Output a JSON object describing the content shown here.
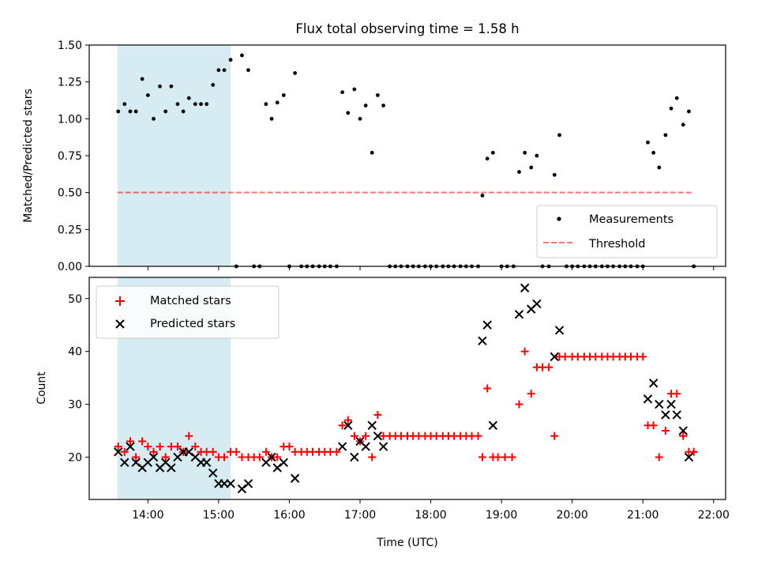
{
  "chart_data": [
    {
      "type": "scatter",
      "title": "Flux total observing time = 1.58 h",
      "ylabel": "Matched/Predicted stars",
      "ylim": [
        0,
        1.5
      ],
      "yticks": [
        0.0,
        0.25,
        0.5,
        0.75,
        1.0,
        1.25,
        1.5
      ],
      "ytick_labels": [
        "0.00",
        "0.25",
        "0.50",
        "0.75",
        "1.00",
        "1.25",
        "1.50"
      ],
      "highlight_span": {
        "start_h": 13.57,
        "end_h": 15.17,
        "color": "#add8e6"
      },
      "threshold": {
        "value": 0.5,
        "start_h": 13.57,
        "end_h": 21.72,
        "color": "#ff0000"
      },
      "legend": {
        "position": "lower right",
        "entries": [
          {
            "label": "Measurements",
            "marker": "dot"
          },
          {
            "label": "Threshold",
            "marker": "dashed-line"
          }
        ]
      },
      "series": [
        {
          "name": "Measurements",
          "color": "#000000",
          "points": [
            [
              13.58,
              1.05
            ],
            [
              13.67,
              1.1
            ],
            [
              13.75,
              1.05
            ],
            [
              13.83,
              1.05
            ],
            [
              13.92,
              1.27
            ],
            [
              14.0,
              1.16
            ],
            [
              14.08,
              1.0
            ],
            [
              14.17,
              1.22
            ],
            [
              14.25,
              1.05
            ],
            [
              14.33,
              1.22
            ],
            [
              14.42,
              1.1
            ],
            [
              14.5,
              1.05
            ],
            [
              14.58,
              1.14
            ],
            [
              14.67,
              1.1
            ],
            [
              14.75,
              1.1
            ],
            [
              14.83,
              1.1
            ],
            [
              14.92,
              1.23
            ],
            [
              15.0,
              1.33
            ],
            [
              15.08,
              1.33
            ],
            [
              15.17,
              1.4
            ],
            [
              15.25,
              0.0
            ],
            [
              15.33,
              1.43
            ],
            [
              15.42,
              1.33
            ],
            [
              15.5,
              0.0
            ],
            [
              15.58,
              0.0
            ],
            [
              15.67,
              1.1
            ],
            [
              15.75,
              1.0
            ],
            [
              15.83,
              1.11
            ],
            [
              15.92,
              1.16
            ],
            [
              16.0,
              0.0
            ],
            [
              16.08,
              1.31
            ],
            [
              16.17,
              0.0
            ],
            [
              16.25,
              0.0
            ],
            [
              16.33,
              0.0
            ],
            [
              16.42,
              0.0
            ],
            [
              16.5,
              0.0
            ],
            [
              16.58,
              0.0
            ],
            [
              16.67,
              0.0
            ],
            [
              16.75,
              1.18
            ],
            [
              16.83,
              1.04
            ],
            [
              16.92,
              1.2
            ],
            [
              17.0,
              1.0
            ],
            [
              17.08,
              1.09
            ],
            [
              17.17,
              0.77
            ],
            [
              17.25,
              1.16
            ],
            [
              17.33,
              1.09
            ],
            [
              17.42,
              0.0
            ],
            [
              17.5,
              0.0
            ],
            [
              17.58,
              0.0
            ],
            [
              17.67,
              0.0
            ],
            [
              17.75,
              0.0
            ],
            [
              17.83,
              0.0
            ],
            [
              17.92,
              0.0
            ],
            [
              18.0,
              0.0
            ],
            [
              18.08,
              0.0
            ],
            [
              18.17,
              0.0
            ],
            [
              18.25,
              0.0
            ],
            [
              18.33,
              0.0
            ],
            [
              18.42,
              0.0
            ],
            [
              18.5,
              0.0
            ],
            [
              18.58,
              0.0
            ],
            [
              18.67,
              0.0
            ],
            [
              18.73,
              0.48
            ],
            [
              18.8,
              0.73
            ],
            [
              18.88,
              0.77
            ],
            [
              19.0,
              0.0
            ],
            [
              19.08,
              0.0
            ],
            [
              19.17,
              0.0
            ],
            [
              19.25,
              0.64
            ],
            [
              19.33,
              0.77
            ],
            [
              19.42,
              0.67
            ],
            [
              19.5,
              0.75
            ],
            [
              19.58,
              0.0
            ],
            [
              19.67,
              0.0
            ],
            [
              19.75,
              0.62
            ],
            [
              19.82,
              0.89
            ],
            [
              19.92,
              0.0
            ],
            [
              20.0,
              0.0
            ],
            [
              20.08,
              0.0
            ],
            [
              20.17,
              0.0
            ],
            [
              20.25,
              0.0
            ],
            [
              20.33,
              0.0
            ],
            [
              20.42,
              0.0
            ],
            [
              20.5,
              0.0
            ],
            [
              20.58,
              0.0
            ],
            [
              20.67,
              0.0
            ],
            [
              20.75,
              0.0
            ],
            [
              20.83,
              0.0
            ],
            [
              20.92,
              0.0
            ],
            [
              21.0,
              0.0
            ],
            [
              21.07,
              0.84
            ],
            [
              21.15,
              0.77
            ],
            [
              21.23,
              0.67
            ],
            [
              21.32,
              0.89
            ],
            [
              21.4,
              1.07
            ],
            [
              21.48,
              1.14
            ],
            [
              21.57,
              0.96
            ],
            [
              21.65,
              1.05
            ],
            [
              21.72,
              0.0
            ]
          ]
        }
      ]
    },
    {
      "type": "scatter",
      "xlabel": "Time (UTC)",
      "ylabel": "Count",
      "ylim": [
        12,
        54
      ],
      "yticks": [
        20,
        30,
        40,
        50
      ],
      "xlim_h": [
        13.17,
        22.17
      ],
      "xticks": [
        "14:00",
        "15:00",
        "16:00",
        "17:00",
        "18:00",
        "19:00",
        "20:00",
        "21:00",
        "22:00"
      ],
      "highlight_span": {
        "start_h": 13.57,
        "end_h": 15.17,
        "color": "#add8e6"
      },
      "legend": {
        "position": "upper left",
        "entries": [
          {
            "label": "Matched stars",
            "marker": "plus",
            "color": "#ff0000"
          },
          {
            "label": "Predicted stars",
            "marker": "x",
            "color": "#000000"
          }
        ]
      },
      "series": [
        {
          "name": "Matched stars",
          "color": "#ff0000",
          "points": [
            [
              13.58,
              22
            ],
            [
              13.67,
              21
            ],
            [
              13.75,
              23
            ],
            [
              13.83,
              20
            ],
            [
              13.92,
              23
            ],
            [
              14.0,
              22
            ],
            [
              14.08,
              21
            ],
            [
              14.17,
              22
            ],
            [
              14.25,
              20
            ],
            [
              14.33,
              22
            ],
            [
              14.42,
              22
            ],
            [
              14.5,
              21
            ],
            [
              14.58,
              24
            ],
            [
              14.67,
              22
            ],
            [
              14.75,
              21
            ],
            [
              14.83,
              21
            ],
            [
              14.92,
              21
            ],
            [
              15.0,
              20
            ],
            [
              15.08,
              20
            ],
            [
              15.17,
              21
            ],
            [
              15.25,
              21
            ],
            [
              15.33,
              20
            ],
            [
              15.42,
              20
            ],
            [
              15.5,
              20
            ],
            [
              15.58,
              20
            ],
            [
              15.67,
              21
            ],
            [
              15.75,
              20
            ],
            [
              15.83,
              20
            ],
            [
              15.92,
              22
            ],
            [
              16.0,
              22
            ],
            [
              16.08,
              21
            ],
            [
              16.17,
              21
            ],
            [
              16.25,
              21
            ],
            [
              16.33,
              21
            ],
            [
              16.42,
              21
            ],
            [
              16.5,
              21
            ],
            [
              16.58,
              21
            ],
            [
              16.67,
              21
            ],
            [
              16.75,
              26
            ],
            [
              16.83,
              27
            ],
            [
              16.92,
              24
            ],
            [
              17.0,
              23
            ],
            [
              17.08,
              24
            ],
            [
              17.17,
              20
            ],
            [
              17.25,
              28
            ],
            [
              17.33,
              24
            ],
            [
              17.42,
              24
            ],
            [
              17.5,
              24
            ],
            [
              17.58,
              24
            ],
            [
              17.67,
              24
            ],
            [
              17.75,
              24
            ],
            [
              17.83,
              24
            ],
            [
              17.92,
              24
            ],
            [
              18.0,
              24
            ],
            [
              18.08,
              24
            ],
            [
              18.17,
              24
            ],
            [
              18.25,
              24
            ],
            [
              18.33,
              24
            ],
            [
              18.42,
              24
            ],
            [
              18.5,
              24
            ],
            [
              18.58,
              24
            ],
            [
              18.67,
              24
            ],
            [
              18.73,
              20
            ],
            [
              18.8,
              33
            ],
            [
              18.88,
              20
            ],
            [
              18.95,
              20
            ],
            [
              19.05,
              20
            ],
            [
              19.15,
              20
            ],
            [
              19.25,
              30
            ],
            [
              19.33,
              40
            ],
            [
              19.42,
              32
            ],
            [
              19.5,
              37
            ],
            [
              19.58,
              37
            ],
            [
              19.67,
              37
            ],
            [
              19.75,
              24
            ],
            [
              19.82,
              39
            ],
            [
              19.9,
              39
            ],
            [
              20.0,
              39
            ],
            [
              20.08,
              39
            ],
            [
              20.17,
              39
            ],
            [
              20.25,
              39
            ],
            [
              20.33,
              39
            ],
            [
              20.42,
              39
            ],
            [
              20.5,
              39
            ],
            [
              20.58,
              39
            ],
            [
              20.67,
              39
            ],
            [
              20.75,
              39
            ],
            [
              20.83,
              39
            ],
            [
              20.92,
              39
            ],
            [
              21.0,
              39
            ],
            [
              21.07,
              26
            ],
            [
              21.15,
              26
            ],
            [
              21.23,
              20
            ],
            [
              21.32,
              25
            ],
            [
              21.4,
              32
            ],
            [
              21.48,
              32
            ],
            [
              21.57,
              24
            ],
            [
              21.65,
              21
            ],
            [
              21.72,
              21
            ]
          ]
        },
        {
          "name": "Predicted stars",
          "color": "#000000",
          "points": [
            [
              13.58,
              21
            ],
            [
              13.67,
              19
            ],
            [
              13.75,
              22
            ],
            [
              13.83,
              19
            ],
            [
              13.92,
              18
            ],
            [
              14.0,
              19
            ],
            [
              14.08,
              20
            ],
            [
              14.17,
              18
            ],
            [
              14.25,
              19
            ],
            [
              14.33,
              18
            ],
            [
              14.42,
              20
            ],
            [
              14.5,
              21
            ],
            [
              14.58,
              21
            ],
            [
              14.67,
              20
            ],
            [
              14.75,
              19
            ],
            [
              14.83,
              19
            ],
            [
              14.92,
              17
            ],
            [
              15.0,
              15
            ],
            [
              15.08,
              15
            ],
            [
              15.17,
              15
            ],
            [
              15.33,
              14
            ],
            [
              15.42,
              15
            ],
            [
              15.67,
              19
            ],
            [
              15.75,
              20
            ],
            [
              15.83,
              18
            ],
            [
              15.92,
              19
            ],
            [
              16.08,
              16
            ],
            [
              16.75,
              22
            ],
            [
              16.83,
              26
            ],
            [
              16.92,
              20
            ],
            [
              17.0,
              23
            ],
            [
              17.08,
              22
            ],
            [
              17.17,
              26
            ],
            [
              17.25,
              24
            ],
            [
              17.33,
              22
            ],
            [
              18.73,
              42
            ],
            [
              18.8,
              45
            ],
            [
              18.88,
              26
            ],
            [
              19.25,
              47
            ],
            [
              19.33,
              52
            ],
            [
              19.42,
              48
            ],
            [
              19.5,
              49
            ],
            [
              19.75,
              39
            ],
            [
              19.82,
              44
            ],
            [
              21.07,
              31
            ],
            [
              21.15,
              34
            ],
            [
              21.23,
              30
            ],
            [
              21.32,
              28
            ],
            [
              21.4,
              30
            ],
            [
              21.48,
              28
            ],
            [
              21.57,
              25
            ],
            [
              21.65,
              20
            ]
          ]
        }
      ]
    }
  ]
}
